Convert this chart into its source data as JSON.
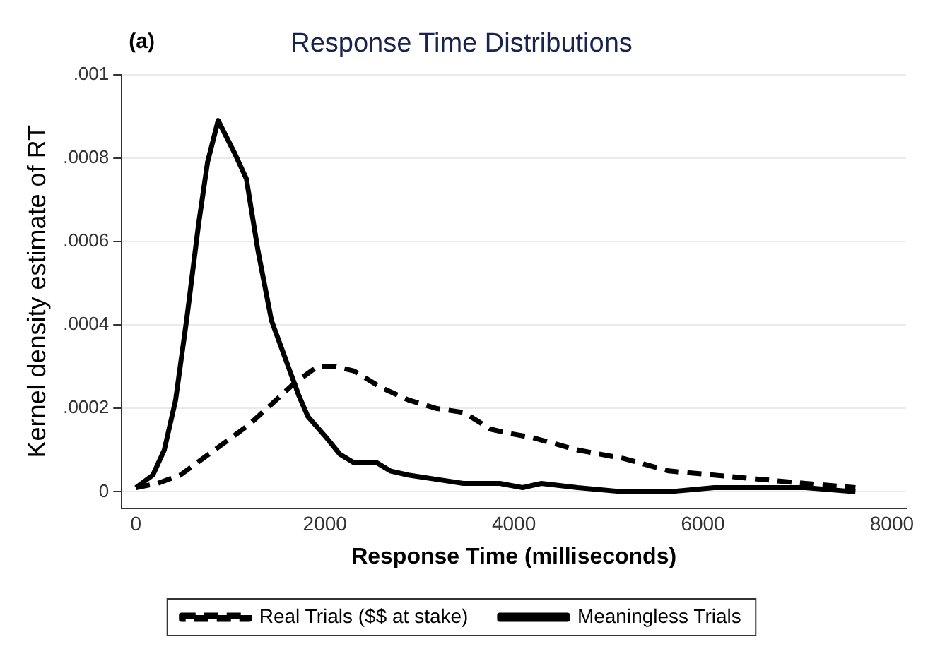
{
  "chart_data": {
    "type": "line",
    "title": "Response Time Distributions",
    "xlabel": "Response Time (milliseconds)",
    "ylabel": "Kernel density estimate of RT",
    "annotations": [
      "(a)"
    ],
    "xlim": [
      -150,
      8150
    ],
    "xticks": [
      0,
      2000,
      4000,
      6000,
      8000
    ],
    "ylim": [
      -4e-05,
      0.001
    ],
    "yticks": [
      {
        "value": 0,
        "label": "0"
      },
      {
        "value": 0.0002,
        "label": ".0002"
      },
      {
        "value": 0.0004,
        "label": ".0004"
      },
      {
        "value": 0.0006,
        "label": ".0006"
      },
      {
        "value": 0.0008,
        "label": ".0008"
      },
      {
        "value": 0.001,
        "label": ".001"
      }
    ],
    "grid": "y",
    "legend": "bottom",
    "marker": "none",
    "series": [
      {
        "name": "Real Trials ($$ at stake)",
        "color": "#000000",
        "line_style": "dashed",
        "x": [
          0,
          227,
          469,
          710,
          952,
          1193,
          1435,
          1676,
          1918,
          2111,
          2304,
          2594,
          2884,
          3174,
          3470,
          3754,
          3952,
          4193,
          4675,
          5157,
          5639,
          6120,
          6602,
          7084,
          7614
        ],
        "values": [
          1e-05,
          2e-05,
          4e-05,
          8e-05,
          0.00012,
          0.00016,
          0.00021,
          0.00026,
          0.0003,
          0.0003,
          0.00029,
          0.00025,
          0.00022,
          0.0002,
          0.00019,
          0.00015,
          0.00014,
          0.00013,
          0.0001,
          8e-05,
          5e-05,
          4e-05,
          3e-05,
          2e-05,
          1e-05
        ]
      },
      {
        "name": "Meaningless Trials",
        "color": "#000000",
        "line_style": "solid",
        "x": [
          0,
          179,
          300,
          420,
          541,
          662,
          758,
          870,
          1048,
          1169,
          1290,
          1435,
          1580,
          1725,
          1821,
          2014,
          2159,
          2304,
          2546,
          2691,
          2884,
          3174,
          3464,
          3850,
          4092,
          4289,
          4675,
          5157,
          5639,
          6120,
          6602,
          7084,
          7614
        ],
        "values": [
          1e-05,
          4e-05,
          0.0001,
          0.00022,
          0.00042,
          0.00064,
          0.00079,
          0.00089,
          0.00081,
          0.00075,
          0.00058,
          0.00041,
          0.00032,
          0.00023,
          0.00018,
          0.00013,
          9e-05,
          7e-05,
          7e-05,
          5e-05,
          4e-05,
          3e-05,
          2e-05,
          2e-05,
          1e-05,
          2e-05,
          1e-05,
          0,
          0,
          1e-05,
          1e-05,
          1e-05,
          0
        ]
      }
    ]
  }
}
